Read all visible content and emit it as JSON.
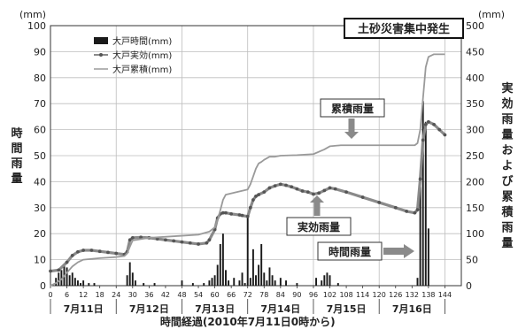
{
  "chart_data": {
    "type": "bar+line",
    "left_axis": {
      "unit": "(mm)",
      "label": "時間雨量",
      "range": [
        0,
        100
      ],
      "ticks": [
        0,
        10,
        20,
        30,
        40,
        50,
        60,
        70,
        80,
        90,
        100
      ]
    },
    "right_axis": {
      "unit": "(mm)",
      "label": "実効雨量および累積雨量",
      "range": [
        0,
        500
      ],
      "ticks": [
        0,
        50,
        100,
        150,
        200,
        250,
        300,
        350,
        400,
        450,
        500
      ]
    },
    "x_axis": {
      "label": "時間経過(2010年7月11日0時から)",
      "range": [
        0,
        150
      ],
      "ticks": [
        0,
        6,
        12,
        18,
        24,
        30,
        36,
        42,
        48,
        54,
        60,
        66,
        72,
        78,
        84,
        90,
        96,
        102,
        108,
        114,
        120,
        126,
        132,
        138,
        144
      ],
      "days": [
        {
          "label": "7月11日",
          "center": 12
        },
        {
          "label": "7月12日",
          "center": 36
        },
        {
          "label": "7月13日",
          "center": 60
        },
        {
          "label": "7月14日",
          "center": 84
        },
        {
          "label": "7月15日",
          "center": 108
        },
        {
          "label": "7月16日",
          "center": 132
        }
      ]
    },
    "grid": true,
    "legend": {
      "position": "top-left",
      "entries": [
        "大戸時間(mm)",
        "大戸実効(mm)",
        "大戸累積(mm)"
      ]
    },
    "series": [
      {
        "name": "大戸時間(mm)",
        "type": "bar",
        "axis": "left",
        "x": [
          2,
          3,
          4,
          5,
          6,
          7,
          8,
          9,
          10,
          11,
          12,
          14,
          16,
          28,
          29,
          30,
          31,
          34,
          38,
          48,
          52,
          56,
          58,
          59,
          60,
          61,
          62,
          63,
          64,
          65,
          67,
          69,
          70,
          71,
          72,
          73,
          74,
          75,
          76,
          77,
          78,
          79,
          80,
          81,
          82,
          84,
          86,
          90,
          97,
          99,
          100,
          101,
          102,
          105,
          134,
          135,
          136,
          137,
          138
        ],
        "values": [
          3,
          5,
          6,
          8,
          7,
          4,
          5,
          3,
          2,
          1,
          2,
          1,
          1,
          4,
          9,
          5,
          2,
          1,
          1,
          2,
          1,
          1,
          2,
          3,
          4,
          8,
          16,
          20,
          6,
          2,
          3,
          2,
          5,
          1,
          27,
          3,
          14,
          4,
          8,
          16,
          5,
          2,
          7,
          4,
          2,
          3,
          2,
          1,
          3,
          2,
          4,
          5,
          4,
          1,
          3,
          38,
          71,
          63,
          22
        ]
      },
      {
        "name": "大戸実効(mm)",
        "type": "line",
        "marker": "circle",
        "axis": "right",
        "x": [
          0,
          3,
          6,
          8,
          10,
          12,
          15,
          18,
          21,
          24,
          27,
          28,
          29,
          30,
          33,
          36,
          39,
          42,
          45,
          48,
          51,
          54,
          57,
          58,
          60,
          61,
          62,
          63,
          64,
          66,
          69,
          70,
          72,
          73,
          74,
          75,
          76,
          78,
          80,
          82,
          84,
          86,
          88,
          90,
          92,
          94,
          96,
          98,
          100,
          102,
          104,
          108,
          114,
          120,
          126,
          130,
          133,
          134,
          135,
          136,
          137,
          138,
          140,
          142,
          144
        ],
        "x_note": "",
        "values": [
          28,
          30,
          45,
          58,
          65,
          68,
          68,
          66,
          64,
          62,
          60,
          65,
          88,
          92,
          93,
          92,
          90,
          88,
          86,
          84,
          82,
          80,
          82,
          88,
          108,
          130,
          138,
          140,
          140,
          138,
          136,
          135,
          133,
          150,
          165,
          172,
          175,
          180,
          188,
          192,
          195,
          193,
          190,
          186,
          182,
          180,
          176,
          178,
          183,
          188,
          186,
          180,
          170,
          160,
          150,
          143,
          140,
          146,
          205,
          280,
          310,
          315,
          310,
          300,
          290
        ]
      },
      {
        "name": "大戸累積(mm)",
        "type": "line",
        "axis": "right",
        "x": [
          0,
          2,
          4,
          6,
          8,
          10,
          12,
          18,
          24,
          27,
          28,
          29,
          30,
          36,
          48,
          54,
          58,
          60,
          61,
          62,
          63,
          64,
          72,
          73,
          74,
          75,
          76,
          77,
          78,
          80,
          82,
          84,
          90,
          96,
          100,
          102,
          106,
          126,
          133,
          134,
          135,
          136,
          137,
          138,
          140,
          144
        ],
        "values": [
          0,
          5,
          12,
          25,
          37,
          45,
          50,
          53,
          55,
          57,
          62,
          75,
          87,
          92,
          96,
          98,
          104,
          112,
          125,
          145,
          165,
          175,
          185,
          195,
          210,
          225,
          235,
          238,
          242,
          248,
          248,
          250,
          251,
          253,
          262,
          268,
          270,
          270,
          270,
          274,
          300,
          360,
          420,
          440,
          445,
          445
        ]
      }
    ],
    "annotations": {
      "event": "土砂災害集中発生",
      "cumulative": "累積雨量",
      "effective": "実効雨量",
      "hourly": "時間雨量"
    }
  }
}
